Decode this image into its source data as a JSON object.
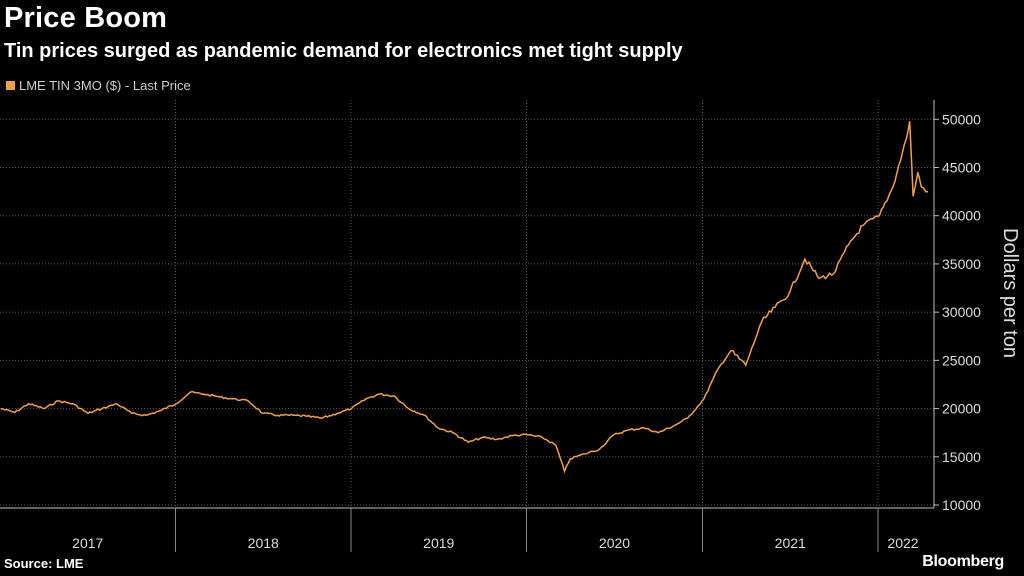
{
  "header": {
    "title": "Price Boom",
    "subtitle": "Tin prices surged as pandemic demand for electronics met tight supply"
  },
  "footer": {
    "source": "Source: LME",
    "brand": "Bloomberg"
  },
  "colors": {
    "background": "#000000",
    "line": "#f0a04b",
    "grid": "#5a5a5a",
    "text": "#ffffff"
  },
  "chart_data": {
    "type": "line",
    "title": "Price Boom",
    "subtitle": "Tin prices surged as pandemic demand for electronics met tight supply",
    "xlabel": "",
    "ylabel": "Dollars per ton",
    "ylim": [
      10000,
      52000
    ],
    "y_ticks": [
      10000,
      15000,
      20000,
      25000,
      30000,
      35000,
      40000,
      45000,
      50000
    ],
    "x_range": [
      "2017-01-01",
      "2022-04-15"
    ],
    "x_tick_labels": [
      "2017",
      "2018",
      "2019",
      "2020",
      "2021",
      "2022"
    ],
    "grid": true,
    "legend_position": "top-left",
    "series": [
      {
        "name": "LME TIN 3MO ($) - Last Price",
        "x": [
          "2017-01-03",
          "2017-02-01",
          "2017-03-01",
          "2017-04-03",
          "2017-05-02",
          "2017-06-01",
          "2017-07-03",
          "2017-08-01",
          "2017-09-01",
          "2017-10-02",
          "2017-11-01",
          "2017-12-01",
          "2018-01-02",
          "2018-02-01",
          "2018-03-01",
          "2018-04-03",
          "2018-05-01",
          "2018-06-01",
          "2018-07-02",
          "2018-08-01",
          "2018-09-03",
          "2018-10-01",
          "2018-11-01",
          "2018-12-03",
          "2019-01-02",
          "2019-02-01",
          "2019-03-01",
          "2019-04-01",
          "2019-05-01",
          "2019-06-03",
          "2019-07-01",
          "2019-08-01",
          "2019-09-02",
          "2019-10-01",
          "2019-11-01",
          "2019-12-02",
          "2020-01-02",
          "2020-02-03",
          "2020-03-02",
          "2020-03-20",
          "2020-04-01",
          "2020-05-01",
          "2020-06-01",
          "2020-07-01",
          "2020-08-03",
          "2020-09-01",
          "2020-10-01",
          "2020-11-02",
          "2020-12-01",
          "2021-01-04",
          "2021-02-01",
          "2021-03-01",
          "2021-04-01",
          "2021-05-04",
          "2021-06-01",
          "2021-07-01",
          "2021-08-02",
          "2021-09-01",
          "2021-10-01",
          "2021-11-01",
          "2021-12-01",
          "2022-01-04",
          "2022-02-01",
          "2022-03-01",
          "2022-03-08",
          "2022-03-15",
          "2022-03-25",
          "2022-04-01",
          "2022-04-15"
        ],
        "values": [
          20000,
          19600,
          20500,
          20000,
          20800,
          20500,
          19500,
          20000,
          20500,
          19500,
          19300,
          19800,
          20500,
          21700,
          21500,
          21200,
          21000,
          20800,
          19500,
          19300,
          19300,
          19200,
          19000,
          19500,
          20000,
          21000,
          21500,
          21300,
          20000,
          19300,
          18000,
          17500,
          16500,
          17000,
          16800,
          17200,
          17300,
          17000,
          16200,
          13500,
          14800,
          15300,
          15800,
          17300,
          17800,
          18000,
          17500,
          18200,
          19000,
          21000,
          24000,
          26000,
          24500,
          29000,
          30500,
          32000,
          35500,
          33500,
          34000,
          37000,
          39000,
          40000,
          43000,
          48000,
          49800,
          42000,
          44500,
          43000,
          42500
        ]
      }
    ]
  }
}
